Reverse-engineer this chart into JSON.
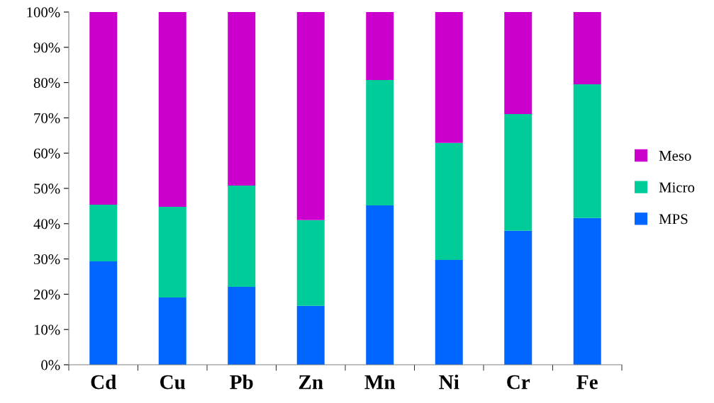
{
  "chart_data": {
    "type": "bar",
    "stacked": true,
    "categories": [
      "Cd",
      "Cu",
      "Pb",
      "Zn",
      "Mn",
      "Ni",
      "Cr",
      "Fe"
    ],
    "series": [
      {
        "name": "MPS",
        "color": "#0066ff",
        "values": [
          29.3,
          19.1,
          22.1,
          16.7,
          45.2,
          29.7,
          38.0,
          41.6
        ]
      },
      {
        "name": "Micro",
        "color": "#00cc99",
        "values": [
          16.1,
          25.7,
          28.7,
          24.3,
          35.5,
          33.2,
          33.1,
          37.9
        ]
      },
      {
        "name": "Meso",
        "color": "#cc00cc",
        "values": [
          54.6,
          55.2,
          49.2,
          59.0,
          19.3,
          37.1,
          28.9,
          20.5
        ]
      }
    ],
    "ylim": [
      0,
      100
    ],
    "yticks": [
      {
        "value": 0,
        "label": "0%"
      },
      {
        "value": 10,
        "label": "10%"
      },
      {
        "value": 20,
        "label": "20%"
      },
      {
        "value": 30,
        "label": "30%"
      },
      {
        "value": 40,
        "label": "40%"
      },
      {
        "value": 50,
        "label": "50%"
      },
      {
        "value": 60,
        "label": "60%"
      },
      {
        "value": 70,
        "label": "70%"
      },
      {
        "value": 80,
        "label": "80%"
      },
      {
        "value": 90,
        "label": "90%"
      },
      {
        "value": 100,
        "label": "100%"
      }
    ],
    "legend": "right",
    "grid": false
  }
}
